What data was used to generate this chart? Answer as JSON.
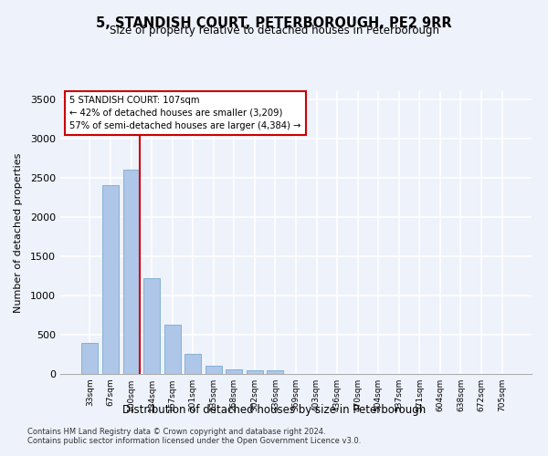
{
  "title": "5, STANDISH COURT, PETERBOROUGH, PE2 9RR",
  "subtitle": "Size of property relative to detached houses in Peterborough",
  "xlabel": "Distribution of detached houses by size in Peterborough",
  "ylabel": "Number of detached properties",
  "footnote1": "Contains HM Land Registry data © Crown copyright and database right 2024.",
  "footnote2": "Contains public sector information licensed under the Open Government Licence v3.0.",
  "bar_categories": [
    "33sqm",
    "67sqm",
    "100sqm",
    "134sqm",
    "167sqm",
    "201sqm",
    "235sqm",
    "268sqm",
    "302sqm",
    "336sqm",
    "369sqm",
    "403sqm",
    "436sqm",
    "470sqm",
    "504sqm",
    "537sqm",
    "571sqm",
    "604sqm",
    "638sqm",
    "672sqm",
    "705sqm"
  ],
  "bar_values": [
    390,
    2400,
    2600,
    1220,
    630,
    250,
    100,
    60,
    50,
    50,
    0,
    0,
    0,
    0,
    0,
    0,
    0,
    0,
    0,
    0,
    0
  ],
  "bar_color": "#aec6e8",
  "bar_edge_color": "#7aaad0",
  "ylim": [
    0,
    3600
  ],
  "yticks": [
    0,
    500,
    1000,
    1500,
    2000,
    2500,
    3000,
    3500
  ],
  "property_bin_index": 2,
  "red_line_color": "#cc0000",
  "annotation_box_text": "5 STANDISH COURT: 107sqm\n← 42% of detached houses are smaller (3,209)\n57% of semi-detached houses are larger (4,384) →",
  "background_color": "#eef2fb",
  "plot_bg_color": "#eef2fb",
  "grid_color": "#ffffff"
}
